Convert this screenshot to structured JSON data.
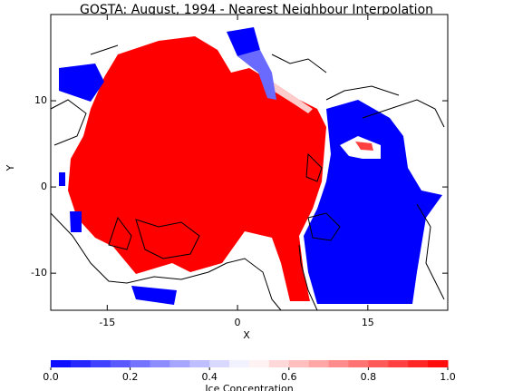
{
  "chart_data": {
    "type": "map",
    "title": "GOSTA: August, 1994 - Nearest Neighbour Interpolation",
    "xlabel": "X",
    "ylabel": "Y",
    "xlim": [
      -21.5,
      24.2
    ],
    "ylim": [
      -14.3,
      20
    ],
    "xticks": [
      -15,
      0,
      15
    ],
    "yticks": [
      -10,
      0,
      10
    ],
    "colorbar": {
      "label": "Ice Concentration",
      "lim": [
        0,
        1
      ],
      "ticks": [
        {
          "value": 0,
          "label": "0.0"
        },
        {
          "value": 0.2,
          "label": "0.2"
        },
        {
          "value": 0.4,
          "label": "0.4"
        },
        {
          "value": 0.6,
          "label": "0.6"
        },
        {
          "value": 0.8,
          "label": "0.8"
        },
        {
          "value": 1,
          "label": "1.0"
        }
      ],
      "colormap": [
        "#0000ff",
        "#ffffff",
        "#ff0000"
      ],
      "levels": 20
    }
  }
}
